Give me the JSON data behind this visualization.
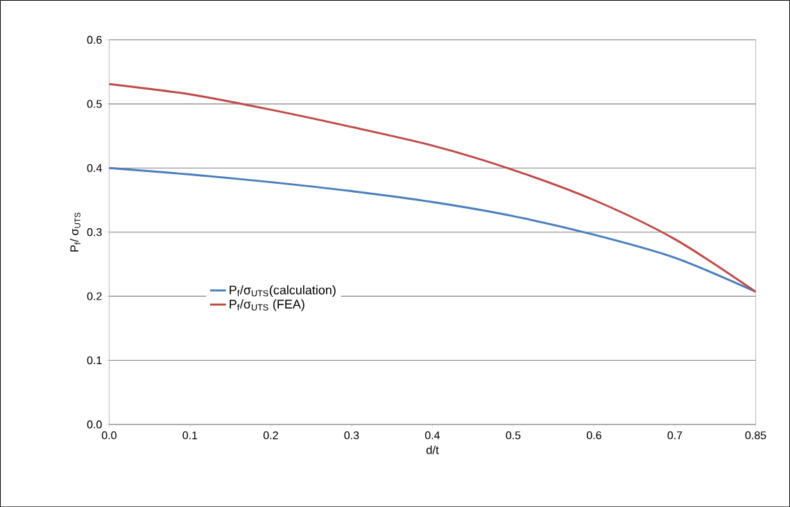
{
  "chart_data": {
    "type": "line",
    "xlabel": "d/t",
    "ylabel": "P$_{f}$/ σ$_{UTS}$",
    "categories": [
      "0.0",
      "0.1",
      "0.2",
      "0.3",
      "0.4",
      "0.5",
      "0.6",
      "0.7",
      "0.85"
    ],
    "series": [
      {
        "name": "P$_{f}$/σ$_{UTS}$(calculation)",
        "color": "#4a7ebb",
        "values": [
          0.4,
          0.39,
          0.378,
          0.364,
          0.347,
          0.325,
          0.296,
          0.26,
          0.207
        ]
      },
      {
        "name": "P$_{f}$/σ$_{UTS}$  (FEA)",
        "color": "#be4b48",
        "values": [
          0.531,
          0.515,
          0.491,
          0.464,
          0.435,
          0.397,
          0.35,
          0.289,
          0.207
        ]
      }
    ],
    "ylim": [
      0,
      0.6
    ],
    "yticks": [
      {
        "value": 0,
        "label": "0.0"
      },
      0.1,
      0.2,
      0.3,
      0.4,
      0.5,
      0.6
    ],
    "grid": "y",
    "legend": "bottom left",
    "marker": "none",
    "line_style": "solid"
  }
}
